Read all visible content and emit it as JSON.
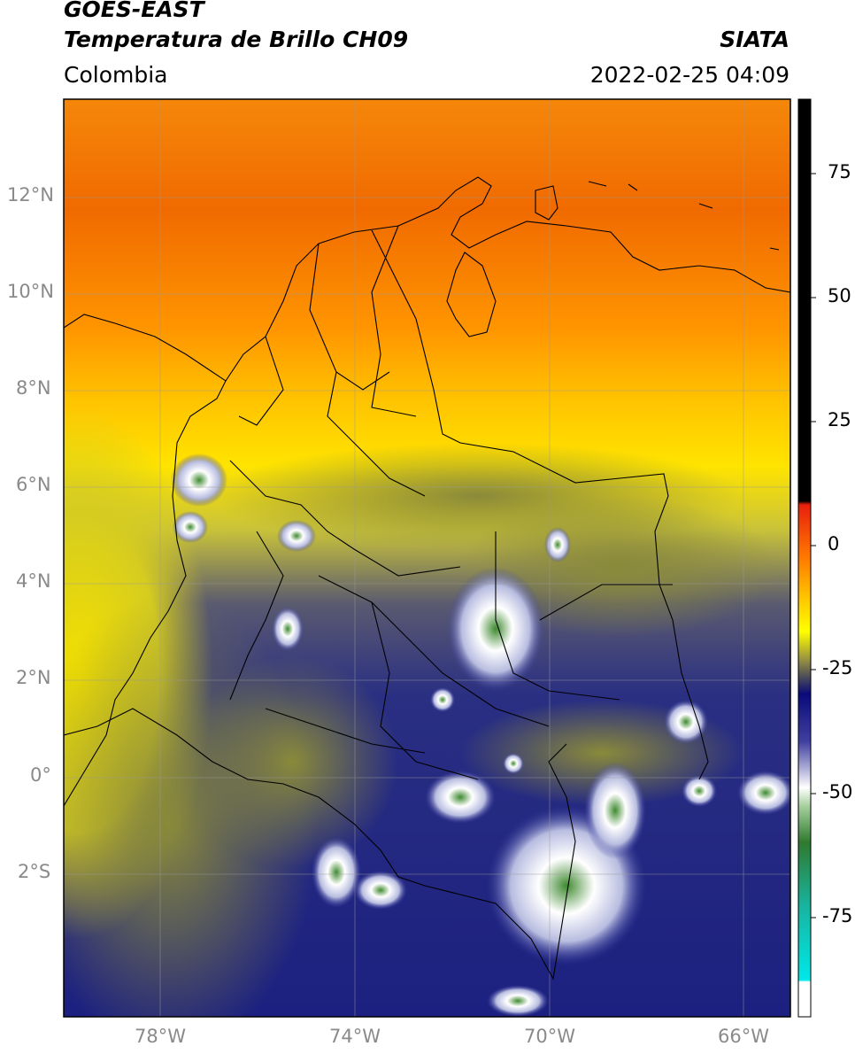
{
  "header": {
    "title_line1": "GOES-EAST",
    "title_line2": "Temperatura de Brillo CH09",
    "brand": "SIATA",
    "region": "Colombia",
    "datetime": "2022-02-25 04:09"
  },
  "map": {
    "lat_labels": [
      "12°N",
      "10°N",
      "8°N",
      "6°N",
      "4°N",
      "2°N",
      "0°",
      "2°S"
    ],
    "lon_labels": [
      "78°W",
      "74°W",
      "70°W",
      "66°W"
    ],
    "colors": {
      "warm_orange": "#f07d00",
      "orange": "#ff9a00",
      "yellow": "#ffe800",
      "olive": "#8f8f3a",
      "navy": "#1a1f82",
      "white": "#ffffff",
      "green": "#3c8a2a"
    }
  },
  "colorbar": {
    "tick_labels": [
      "75",
      "50",
      "25",
      "0",
      "-25",
      "-50",
      "-75"
    ],
    "tick_values": [
      75,
      50,
      25,
      0,
      -25,
      -50,
      -75
    ],
    "range": [
      -95,
      90
    ],
    "colors": {
      "black": "#000000",
      "red": "#e8200c",
      "orange": "#ff8c00",
      "yellow": "#ffff00",
      "olive": "#6f6a3a",
      "navy": "#0a0a7a",
      "white": "#ffffff",
      "green": "#2f7a2f",
      "teal": "#18b4a0",
      "cyan": "#00e8e8"
    }
  }
}
